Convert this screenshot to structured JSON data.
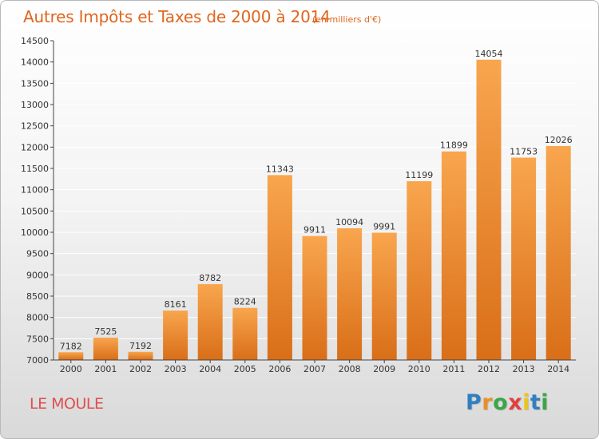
{
  "header": {
    "title": "Autres Impôts et Taxes de 2000 à 2014",
    "subtitle": "(en milliers d'€)"
  },
  "footer": {
    "commune": "LE MOULE",
    "logo_letters": [
      {
        "ch": "P",
        "color": "#2f7fc1"
      },
      {
        "ch": "r",
        "color": "#e8902a"
      },
      {
        "ch": "o",
        "color": "#3aa647"
      },
      {
        "ch": "x",
        "color": "#e04040"
      },
      {
        "ch": "i",
        "color": "#e8c51e"
      },
      {
        "ch": "t",
        "color": "#2f7fc1"
      },
      {
        "ch": "i",
        "color": "#3aa647"
      }
    ]
  },
  "colors": {
    "bar_light": "#f8a64e",
    "bar_dark": "#d96e18",
    "grid": "#ffffff",
    "axis": "#444444"
  },
  "chart_data": {
    "type": "bar",
    "categories": [
      "2000",
      "2001",
      "2002",
      "2003",
      "2004",
      "2005",
      "2006",
      "2007",
      "2008",
      "2009",
      "2010",
      "2011",
      "2012",
      "2013",
      "2014"
    ],
    "values": [
      7182,
      7525,
      7192,
      8161,
      8782,
      8224,
      11343,
      9911,
      10094,
      9991,
      11199,
      11899,
      14054,
      11753,
      12026
    ],
    "title": "Autres Impôts et Taxes de 2000 à 2014",
    "subtitle": "(en milliers d'€)",
    "xlabel": "",
    "ylabel": "",
    "ylim": [
      7000,
      14500
    ],
    "yticks": [
      7000,
      7500,
      8000,
      8500,
      9000,
      9500,
      10000,
      10500,
      11000,
      11500,
      12000,
      12500,
      13000,
      13500,
      14000,
      14500
    ],
    "grid": true,
    "legend": "none"
  }
}
